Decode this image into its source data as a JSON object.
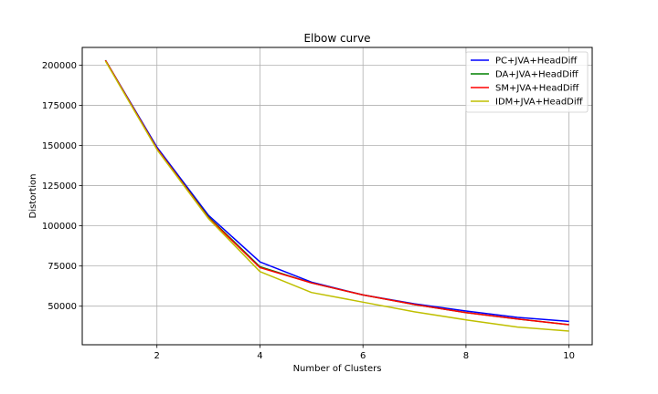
{
  "chart_data": {
    "type": "line",
    "title": "Elbow curve",
    "xlabel": "Number of Clusters",
    "ylabel": "Distortion",
    "xlim": [
      0.55,
      10.45
    ],
    "ylim": [
      26000,
      211000
    ],
    "xticks": [
      2,
      4,
      6,
      8,
      10
    ],
    "xtick_labels": [
      "2",
      "4",
      "6",
      "8",
      "10"
    ],
    "yticks": [
      50000,
      75000,
      100000,
      125000,
      150000,
      175000,
      200000
    ],
    "ytick_labels": [
      "50000",
      "75000",
      "100000",
      "125000",
      "150000",
      "175000",
      "200000"
    ],
    "grid": true,
    "legend_position": "top-right",
    "x": [
      1,
      2,
      3,
      4,
      5,
      6,
      7,
      8,
      9,
      10
    ],
    "series": [
      {
        "name": "PC+JVA+HeadDiff",
        "color": "#0000ff",
        "values": [
          203000,
          149000,
          106500,
          77500,
          65000,
          57000,
          51500,
          47000,
          43000,
          40500
        ]
      },
      {
        "name": "DA+JVA+HeadDiff",
        "color": "#008000",
        "values": [
          203000,
          148000,
          105500,
          74500,
          64500,
          57000,
          51000,
          46000,
          42000,
          38500
        ]
      },
      {
        "name": "SM+JVA+HeadDiff",
        "color": "#ff0000",
        "values": [
          203000,
          148000,
          105000,
          74000,
          64500,
          57000,
          51000,
          46000,
          42000,
          38500
        ]
      },
      {
        "name": "IDM+JVA+HeadDiff",
        "color": "#bfbf00",
        "values": [
          202500,
          147500,
          104500,
          71500,
          58500,
          52500,
          46500,
          41500,
          37000,
          34500
        ]
      }
    ]
  }
}
